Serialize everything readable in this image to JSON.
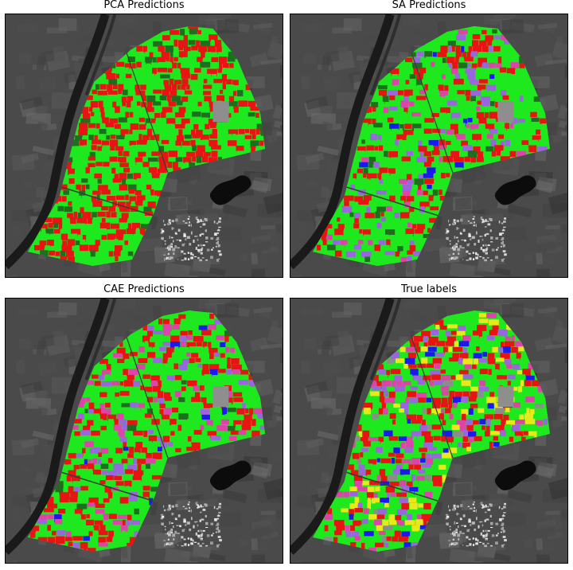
{
  "panels": [
    {
      "title": "PCA Predictions",
      "scheme": "pca"
    },
    {
      "title": "SA Predictions",
      "scheme": "sa"
    },
    {
      "title": "CAE Predictions",
      "scheme": "cae"
    },
    {
      "title": "True labels",
      "scheme": "true"
    }
  ],
  "colors": {
    "green": "#1ee81e",
    "red": "#e81414",
    "dark_green": "#1f6e1f",
    "purple": "#9966dd",
    "magenta": "#dd44aa",
    "blue": "#1a1aee",
    "yellow": "#e8e81a",
    "gray_field": "#8c8c8c",
    "river": "#1a1a1a",
    "background": "#4a4a4a"
  }
}
